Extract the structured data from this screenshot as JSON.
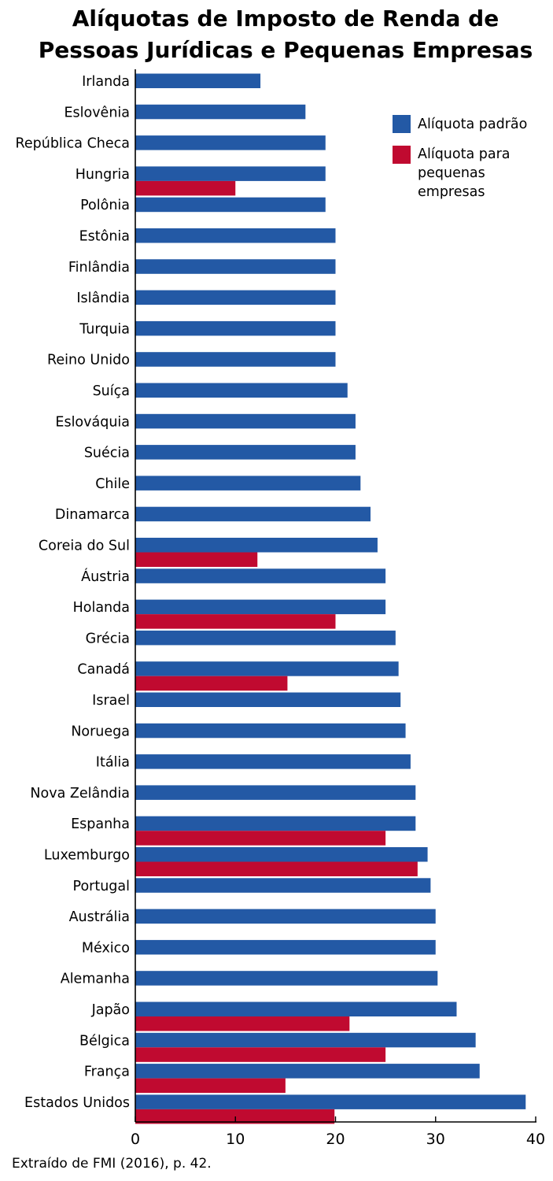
{
  "chart_data": {
    "type": "bar",
    "orientation": "horizontal",
    "title": "Alíquotas de Imposto de Renda de Pessoas Jurídicas e Pequenas Empresas",
    "title_lines": [
      "Alíquotas de Imposto de Renda de",
      "Pessoas Jurídicas e Pequenas Empresas"
    ],
    "source": "Extraído de FMI (2016), p. 42.",
    "xlim": [
      0,
      40
    ],
    "xticks": [
      0,
      10,
      20,
      30,
      40
    ],
    "grid": false,
    "legend_position": "top-right",
    "categories": [
      "Irlanda",
      "Eslovênia",
      "República Checa",
      "Hungria",
      "Polônia",
      "Estônia",
      "Finlândia",
      "Islândia",
      "Turquia",
      "Reino Unido",
      "Suíça",
      "Eslováquia",
      "Suécia",
      "Chile",
      "Dinamarca",
      "Coreia do Sul",
      "Áustria",
      "Holanda",
      "Grécia",
      "Canadá",
      "Israel",
      "Noruega",
      "Itália",
      "Nova Zelândia",
      "Espanha",
      "Luxemburgo",
      "Portugal",
      "Austrália",
      "México",
      "Alemanha",
      "Japão",
      "Bélgica",
      "França",
      "Estados Unidos"
    ],
    "series": [
      {
        "name": "Alíquota padrão",
        "color": "#2359a5",
        "values": [
          12.5,
          17,
          19,
          19,
          19,
          20,
          20,
          20,
          20,
          20,
          21.2,
          22,
          22,
          22.5,
          23.5,
          24.2,
          25,
          25,
          26,
          26.3,
          26.5,
          27,
          27.5,
          28,
          28,
          29.2,
          29.5,
          30,
          30,
          30.2,
          32.1,
          34,
          34.4,
          39
        ]
      },
      {
        "name": "Alíquota para pequenas empresas",
        "name_lines": [
          "Alíquota para",
          "pequenas",
          "empresas"
        ],
        "color": "#c00a30",
        "values": [
          null,
          null,
          null,
          10,
          null,
          null,
          null,
          null,
          null,
          null,
          null,
          null,
          null,
          null,
          null,
          12.2,
          null,
          20,
          null,
          15.2,
          null,
          null,
          null,
          null,
          25,
          28.2,
          null,
          null,
          null,
          null,
          21.4,
          25,
          15,
          19.9
        ]
      }
    ]
  }
}
